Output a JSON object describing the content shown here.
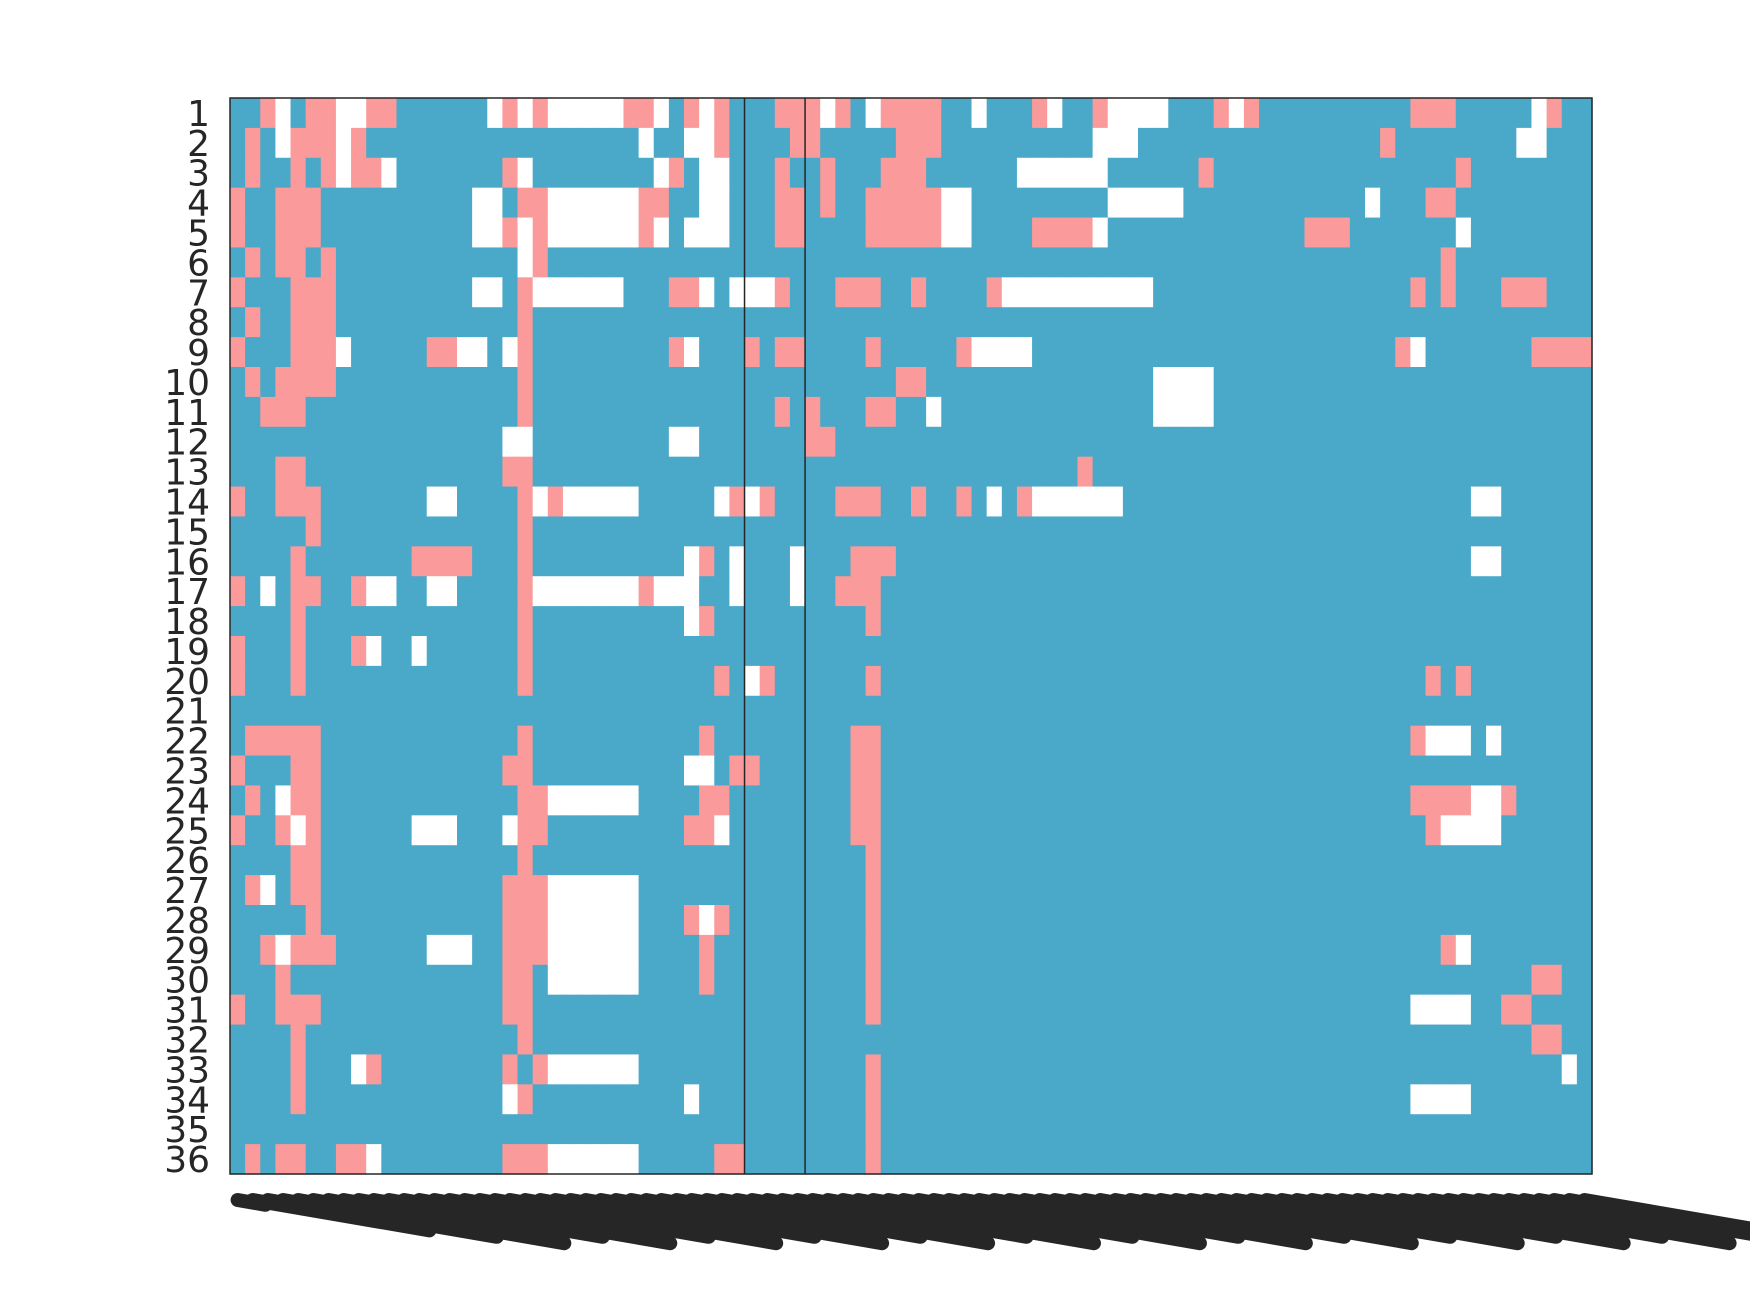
{
  "chart_data": {
    "type": "heatmap",
    "title": "",
    "xlabel": "",
    "ylabel": "",
    "rows": [
      "1",
      "2",
      "3",
      "4",
      "5",
      "6",
      "7",
      "8",
      "9",
      "10",
      "11",
      "12",
      "13",
      "14",
      "15",
      "16",
      "17",
      "18",
      "19",
      "20",
      "21",
      "22",
      "23",
      "24",
      "25",
      "26",
      "27",
      "28",
      "29",
      "30",
      "31",
      "32",
      "33",
      "34",
      "35",
      "36"
    ],
    "column_count": 90,
    "column_labels_legible": false,
    "separator_columns_after": [
      34,
      38
    ],
    "grid": false,
    "legend": "none",
    "state_colors": {
      "0": "#ffffff",
      "1": "#4aa8c8",
      "2": "#fb9a9a"
    },
    "matrix_encoding": "each string is one row; characters are column states: 0 = white, 1 = blue, 2 = pink",
    "matrix": [
      "112012200221111110202000002201202111222021022221101112011200001112021111111111222111110211",
      "121022202111111111111111111011002111122111112221111111111000111111111111111121111111100111",
      "121121202201111111201111111102100111211211122211111100000011111121111111111111111211111111",
      "211222111111111100122000000221100111221211222220011111111100000111111111111011122111111111",
      "211222111111111100202000000201000111221111222220011112222011111111111112221111111011111111",
      "121221211111111111102111111111111111111111111111111111111111111111111111111111112111111111",
      "211122211111111100120000001112201000211122211211112000000000011111111111111111212111222111",
      "121122211111111111121111111111111111111111111111111111111111111111111111111111111111111111",
      "211122201111122001021111111112011121221111211111200001111111111111111111111112011111112222",
      "121222211111111111121111111111111111111111112211111111111111100001111111111111111111111111",
      "112221111111111111121111111111111111212111221101111111111111100001111111111111111111111111",
      "111111111111111111001111111110011111112211111111111111111111111111111111111111111111111111",
      "111221111111111111221111111111111111111111111111111111112111111111111111111111111111111111",
      "211222111111100111120200000111110202111122211211210120000001111111111111111111111100111111",
      "111112111111111111121111111111111111111111111111111111111111111111111111111111111111111111",
      "111121111111222211121111111111021011101112221111111111111111111111111111111111111100111111",
      "210122112001100111120000000200011011101122211111111111111111111111111111111111111111111111",
      "111121111111111111121111111111021111111111211111111111111111111111111111111111111111111111",
      "211121112011011111121111111111111111111111111111111111111111111111111111111111111111111111",
      "211121111111111111121111111111112102111111211111111111111111111111111111111111121211111111",
      "111111111111111111111111111111111111111111111111111111111111111111111111111111111111111111",
      "122222111111111111121111111111121111111112211111111111111111111111111111111111200010111111",
      "211122111111111111221111111111001221111112211111111111111111111111111111111111111111111111",
      "121022111111111111122000000111122111111112211111111111111111111111111111111111222200211111",
      "211202111111000111022111111111220111111112211111111111111111111111111111111111120000111111",
      "111122111111111111121111111111111111111111211111111111111111111111111111111111111111111111",
      "120122111111111111222000000111111111111111211111111111111111111111111111111111111111111111",
      "111112111111111111222000000111202111111111211111111111111111111111111111111111111111111111",
      "112022211111100011222000000111121111111111211111111111111111111111111111111111112011111111",
      "111211111111111111221000000111121111111111211111111111111111111111111111111111111111112211",
      "211222111111111111221111111111111111111111211111111111111111111111111111111111000011221111",
      "111121111111111111121111111111111111111111111111111111111111111111111111111111111111112211",
      "111121110211111111212000000111111111111111211111111111111111111111111111111111111111111101",
      "111121111111111111021111111111011111111111211111111111111111111111111111111111000011111111",
      "111111111111111111111111111111111111111111211111111111111111111111111111111111111111111111",
      "121221122011111111222000000111112211111111211111111111111111111111111111111111111111111111"
    ]
  }
}
